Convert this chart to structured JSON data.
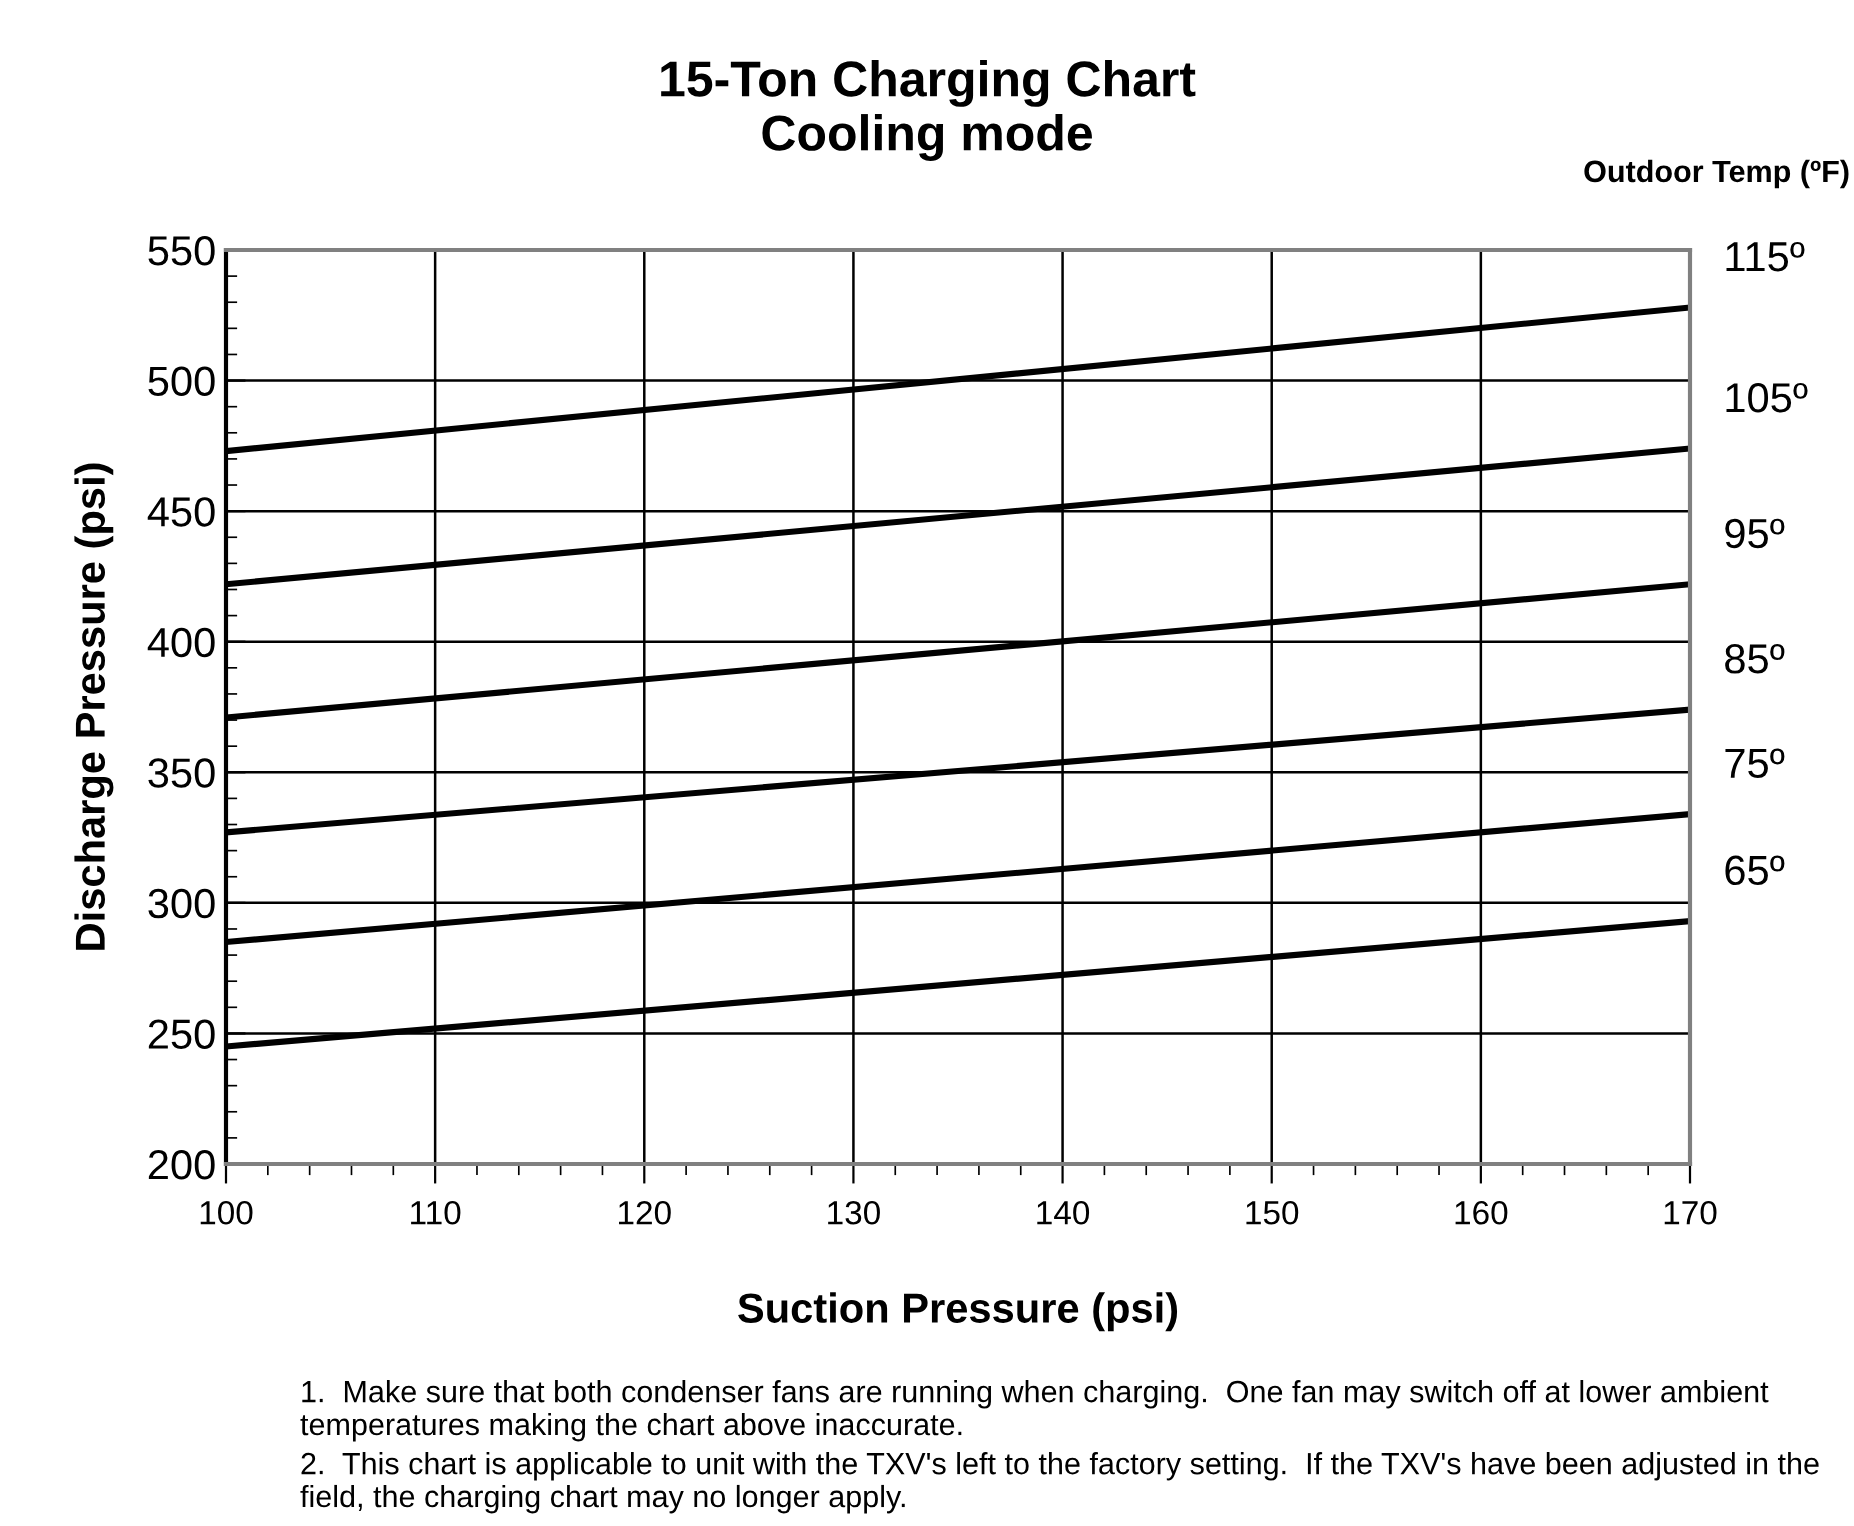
{
  "chart_data": {
    "type": "line",
    "title": "15-Ton Charging Chart\nCooling mode",
    "xlabel": "Suction Pressure (psi)",
    "ylabel": "Discharge Pressure (psi)",
    "legend_title": "Outdoor Temp (ºF)",
    "x": [
      100,
      170
    ],
    "series": [
      {
        "name": "115º",
        "color": "#000000",
        "values": [
          473,
          528
        ]
      },
      {
        "name": "105º",
        "color": "#000000",
        "values": [
          422,
          474
        ]
      },
      {
        "name": "95º",
        "color": "#000000",
        "values": [
          371,
          422
        ]
      },
      {
        "name": "85º",
        "color": "#000000",
        "values": [
          327,
          374
        ]
      },
      {
        "name": "75º",
        "color": "#000000",
        "values": [
          285,
          334
        ]
      },
      {
        "name": "65º",
        "color": "#000000",
        "values": [
          245,
          293
        ]
      }
    ],
    "xlim": [
      100,
      170
    ],
    "xticks": [
      100,
      110,
      120,
      130,
      140,
      150,
      160,
      170
    ],
    "ylim": [
      200,
      550
    ],
    "yticks": [
      200,
      250,
      300,
      350,
      400,
      450,
      500,
      550
    ],
    "grid": true,
    "legend": false,
    "marker": "none",
    "line_style": "solid",
    "annotations": [
      "1.  Make sure that both condenser fans are running when charging.  One fan may switch off at lower ambient temperatures making the chart above inaccurate.",
      "2.  This chart is applicable to unit with the TXV's left to the factory setting.  If the TXV's have been adjusted in the field, the charging chart may no longer apply."
    ]
  }
}
